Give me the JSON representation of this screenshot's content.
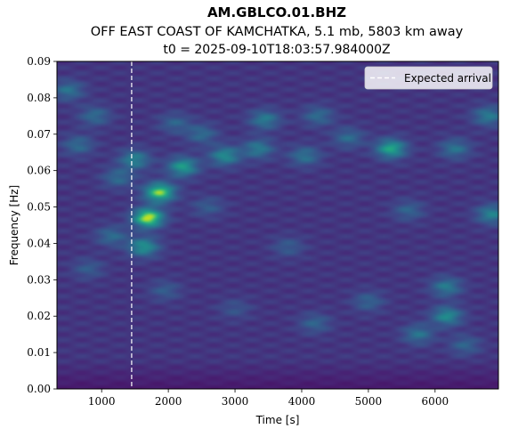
{
  "chart_data": {
    "type": "heatmap",
    "title": "AM.GBLCO.01.BHZ",
    "subtitle": "OFF EAST COAST OF KAMCHATKA, 5.1 mb, 5803 km away",
    "t0_label": "t0 = 2025-09-10T18:03:57.984000Z",
    "xlabel": "Time [s]",
    "ylabel": "Frequency [Hz]",
    "xlim": [
      330,
      6950
    ],
    "ylim": [
      0,
      0.09
    ],
    "x_ticks": [
      {
        "value": 1000,
        "label": "1000"
      },
      {
        "value": 2000,
        "label": "2000"
      },
      {
        "value": 3000,
        "label": "3000"
      },
      {
        "value": 4000,
        "label": "4000"
      },
      {
        "value": 5000,
        "label": "5000"
      },
      {
        "value": 6000,
        "label": "6000"
      }
    ],
    "y_ticks": [
      {
        "value": 0.0,
        "label": "0.00"
      },
      {
        "value": 0.01,
        "label": "0.01"
      },
      {
        "value": 0.02,
        "label": "0.02"
      },
      {
        "value": 0.03,
        "label": "0.03"
      },
      {
        "value": 0.04,
        "label": "0.04"
      },
      {
        "value": 0.05,
        "label": "0.05"
      },
      {
        "value": 0.06,
        "label": "0.06"
      },
      {
        "value": 0.07,
        "label": "0.07"
      },
      {
        "value": 0.08,
        "label": "0.08"
      },
      {
        "value": 0.09,
        "label": "0.09"
      }
    ],
    "expected_arrival": 1450,
    "legend": {
      "placement": "top-right",
      "entries": [
        {
          "label": "Expected arrival",
          "style": "dashed",
          "color": "#ffffff"
        }
      ]
    },
    "colormap": "viridis",
    "grid": false,
    "hotspots": [
      {
        "t": 1700,
        "f": 0.047,
        "level": 1.0
      },
      {
        "t": 1870,
        "f": 0.054,
        "level": 0.9
      },
      {
        "t": 1630,
        "f": 0.039,
        "level": 0.6
      },
      {
        "t": 2220,
        "f": 0.061,
        "level": 0.65
      },
      {
        "t": 1500,
        "f": 0.063,
        "level": 0.5
      },
      {
        "t": 2850,
        "f": 0.064,
        "level": 0.55
      },
      {
        "t": 3350,
        "f": 0.066,
        "level": 0.45
      },
      {
        "t": 3450,
        "f": 0.074,
        "level": 0.45
      },
      {
        "t": 2500,
        "f": 0.07,
        "level": 0.35
      },
      {
        "t": 2100,
        "f": 0.073,
        "level": 0.3
      },
      {
        "t": 5340,
        "f": 0.066,
        "level": 0.7
      },
      {
        "t": 6180,
        "f": 0.02,
        "level": 0.55
      },
      {
        "t": 6170,
        "f": 0.028,
        "level": 0.45
      },
      {
        "t": 5750,
        "f": 0.015,
        "level": 0.4
      },
      {
        "t": 4050,
        "f": 0.064,
        "level": 0.4
      },
      {
        "t": 4250,
        "f": 0.075,
        "level": 0.35
      },
      {
        "t": 4700,
        "f": 0.069,
        "level": 0.35
      },
      {
        "t": 6300,
        "f": 0.066,
        "level": 0.4
      },
      {
        "t": 6850,
        "f": 0.048,
        "level": 0.5
      },
      {
        "t": 6800,
        "f": 0.075,
        "level": 0.45
      },
      {
        "t": 500,
        "f": 0.082,
        "level": 0.4
      },
      {
        "t": 900,
        "f": 0.075,
        "level": 0.35
      },
      {
        "t": 650,
        "f": 0.067,
        "level": 0.35
      },
      {
        "t": 1250,
        "f": 0.058,
        "level": 0.35
      },
      {
        "t": 1150,
        "f": 0.042,
        "level": 0.35
      },
      {
        "t": 800,
        "f": 0.033,
        "level": 0.25
      },
      {
        "t": 4200,
        "f": 0.018,
        "level": 0.3
      },
      {
        "t": 5000,
        "f": 0.024,
        "level": 0.3
      },
      {
        "t": 3000,
        "f": 0.022,
        "level": 0.2
      },
      {
        "t": 5600,
        "f": 0.049,
        "level": 0.3
      },
      {
        "t": 6450,
        "f": 0.012,
        "level": 0.3
      },
      {
        "t": 1950,
        "f": 0.027,
        "level": 0.25
      },
      {
        "t": 3800,
        "f": 0.039,
        "level": 0.25
      },
      {
        "t": 2600,
        "f": 0.05,
        "level": 0.25
      }
    ]
  }
}
